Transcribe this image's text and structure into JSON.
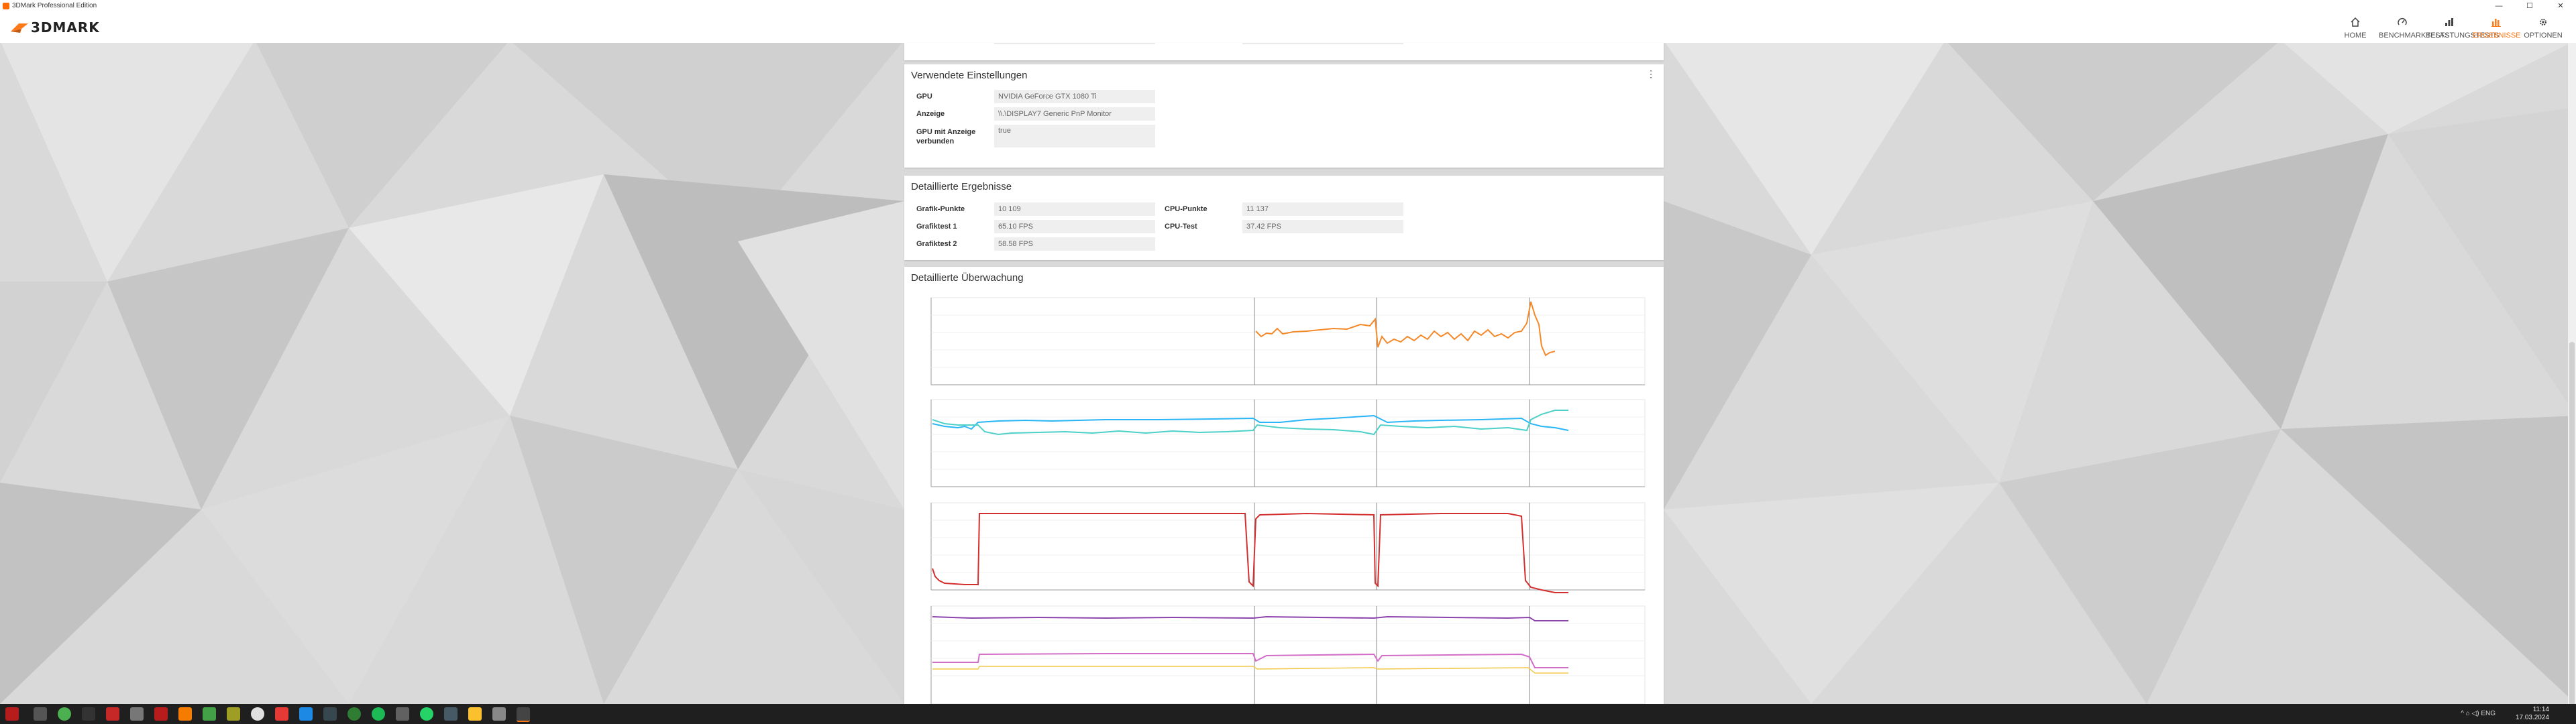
{
  "window": {
    "title": "3DMark Professional Edition",
    "minimize": "—",
    "maximize": "☐",
    "close": "✕"
  },
  "app": {
    "logo": "3DMARK"
  },
  "nav": [
    {
      "label": "HOME",
      "icon": "home-icon"
    },
    {
      "label": "BENCHMARKTESTS",
      "icon": "gauge-icon"
    },
    {
      "label": "BELASTUNGSTESTS",
      "icon": "stress-icon"
    },
    {
      "label": "ERGEBNISSE",
      "icon": "results-icon"
    },
    {
      "label": "OPTIONEN",
      "icon": "gear-icon"
    }
  ],
  "settings": {
    "title": "Verwendete Einstellungen",
    "rows": [
      {
        "label": "GPU",
        "value": "NVIDIA GeForce GTX 1080 Ti"
      },
      {
        "label": "Anzeige",
        "value": "\\\\.\\DISPLAY7 Generic PnP Monitor"
      },
      {
        "label": "GPU mit Anzeige verbunden",
        "value": "true"
      }
    ]
  },
  "details": {
    "title": "Detaillierte Ergebnisse",
    "left": [
      {
        "label": "Grafik-Punkte",
        "value": "10 109"
      },
      {
        "label": "Grafiktest 1",
        "value": "65.10 FPS"
      },
      {
        "label": "Grafiktest 2",
        "value": "58.58 FPS"
      }
    ],
    "right": [
      {
        "label": "CPU-Punkte",
        "value": "11 137"
      },
      {
        "label": "CPU-Test",
        "value": "37.42 FPS"
      }
    ]
  },
  "monitoring": {
    "title": "Detaillierte Überwachung"
  },
  "taskbar": {
    "time": "11:14",
    "date": "17.03.2024",
    "tray": "^  ⌂  ◁)  ENG"
  },
  "colors": {
    "accent": "#ff7a1a",
    "fps": "#f5892a",
    "temp_gpu": "#29b6f6",
    "temp_cpu": "#4dd0c8",
    "power": "#d32f2f",
    "clock_gpu_core": "#8e44ad",
    "clock_gpu_mem": "#d36ec8",
    "clock_cpu": "#f2c94c"
  }
}
